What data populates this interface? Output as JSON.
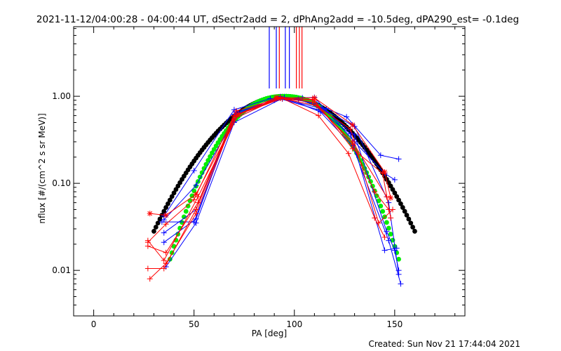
{
  "chart_data": {
    "type": "scatter",
    "title": "2021-11-12/04:00:28 - 04:00:44 UT, dSectr2add = 2, dPhAng2add = -10.5deg, dPA290_est= -0.1deg",
    "xlabel": "PA [deg]",
    "ylabel": "nflux [#/(cm^2 s sr MeV)]",
    "xlim": [
      -10,
      185
    ],
    "ylim": [
      0.003,
      6.3
    ],
    "yscale": "log",
    "x_ticks": [
      0,
      50,
      100,
      150
    ],
    "x_tick_labels": [
      "0",
      "50",
      "100",
      "150"
    ],
    "y_ticks": [
      0.01,
      0.1,
      1.0
    ],
    "y_tick_labels": [
      "0.01",
      "0.10",
      "1.00"
    ],
    "footer": "Created: Sun Nov 21 17:44:04 2021",
    "colors": {
      "blue": "#0000ff",
      "red": "#ff0000",
      "black": "#000000",
      "green": "#00ee00"
    },
    "vertical_markers": [
      {
        "x": 87.5,
        "color": "#0000ff"
      },
      {
        "x": 91.0,
        "color": "#0000ff"
      },
      {
        "x": 92.5,
        "color": "#ff0000"
      },
      {
        "x": 95.5,
        "color": "#0000ff"
      },
      {
        "x": 97.5,
        "color": "#0000ff"
      },
      {
        "x": 101.0,
        "color": "#ff0000"
      },
      {
        "x": 102.5,
        "color": "#ff0000"
      },
      {
        "x": 103.8,
        "color": "#ff0000"
      }
    ],
    "series": [
      {
        "color": "#0000ff",
        "marker": "+",
        "points": [
          [
            35,
            0.042
          ],
          [
            50,
            0.14
          ],
          [
            70,
            0.7
          ],
          [
            88,
            0.94
          ],
          [
            102,
            0.92
          ],
          [
            116,
            0.72
          ],
          [
            126,
            0.58
          ],
          [
            143,
            0.21
          ],
          [
            152,
            0.19
          ]
        ]
      },
      {
        "color": "#0000ff",
        "marker": "+",
        "points": [
          [
            35,
            0.038
          ],
          [
            51,
            0.095
          ],
          [
            72,
            0.63
          ],
          [
            90,
            0.9
          ],
          [
            104,
            0.96
          ],
          [
            110,
            0.97
          ],
          [
            130,
            0.3
          ],
          [
            145,
            0.13
          ],
          [
            150,
            0.11
          ]
        ]
      },
      {
        "color": "#0000ff",
        "marker": "+",
        "points": [
          [
            35,
            0.027
          ],
          [
            51,
            0.05
          ],
          [
            70,
            0.55
          ],
          [
            92,
            0.95
          ],
          [
            112,
            0.7
          ],
          [
            128,
            0.37
          ],
          [
            145,
            0.017
          ],
          [
            151,
            0.018
          ]
        ]
      },
      {
        "color": "#0000ff",
        "marker": "+",
        "points": [
          [
            35,
            0.021
          ],
          [
            51,
            0.039
          ],
          [
            70,
            0.62
          ],
          [
            93,
            0.99
          ],
          [
            111,
            0.82
          ],
          [
            130,
            0.36
          ],
          [
            146,
            0.028
          ],
          [
            150,
            0.017
          ],
          [
            152,
            0.01
          ]
        ]
      },
      {
        "color": "#0000ff",
        "marker": "+",
        "points": [
          [
            36,
            0.011
          ],
          [
            51,
            0.035
          ],
          [
            70,
            0.5
          ],
          [
            95,
            0.97
          ],
          [
            113,
            0.66
          ],
          [
            129,
            0.27
          ],
          [
            147,
            0.022
          ],
          [
            153,
            0.007
          ]
        ]
      },
      {
        "color": "#0000ff",
        "marker": "+",
        "points": [
          [
            34,
            0.036
          ],
          [
            50,
            0.036
          ],
          [
            71,
            0.66
          ],
          [
            94,
            0.93
          ],
          [
            114,
            0.72
          ],
          [
            130,
            0.45
          ],
          [
            147,
            0.06
          ],
          [
            152,
            0.009
          ]
        ]
      },
      {
        "color": "#ff0000",
        "marker": "*",
        "points": [
          [
            28,
            0.045
          ],
          [
            36,
            0.043
          ],
          [
            51,
            0.075
          ],
          [
            72,
            0.62
          ],
          [
            91,
            0.97
          ],
          [
            110,
            0.96
          ],
          [
            129,
            0.47
          ],
          [
            145,
            0.135
          ],
          [
            148,
            0.068
          ]
        ]
      },
      {
        "color": "#ff0000",
        "marker": "+",
        "points": [
          [
            27,
            0.021
          ],
          [
            36,
            0.034
          ],
          [
            50,
            0.065
          ],
          [
            71,
            0.68
          ],
          [
            93,
            0.95
          ],
          [
            109,
            0.92
          ],
          [
            129,
            0.28
          ],
          [
            140,
            0.08
          ],
          [
            147,
            0.05
          ]
        ]
      },
      {
        "color": "#ff0000",
        "marker": "+",
        "points": [
          [
            27,
            0.019
          ],
          [
            36,
            0.016
          ],
          [
            52,
            0.06
          ],
          [
            70,
            0.6
          ],
          [
            93,
            0.95
          ],
          [
            110,
            0.9
          ],
          [
            129,
            0.25
          ],
          [
            144,
            0.13
          ],
          [
            148,
            0.04
          ]
        ]
      },
      {
        "color": "#ff0000",
        "marker": "+",
        "points": [
          [
            27,
            0.0105
          ],
          [
            35,
            0.0105
          ],
          [
            51,
            0.05
          ],
          [
            70,
            0.58
          ],
          [
            92,
            0.96
          ],
          [
            111,
            0.78
          ],
          [
            128,
            0.42
          ],
          [
            142,
            0.035
          ],
          [
            149,
            0.05
          ]
        ]
      },
      {
        "color": "#ff0000",
        "marker": "+",
        "points": [
          [
            28,
            0.008
          ],
          [
            36,
            0.012
          ],
          [
            51,
            0.045
          ],
          [
            70,
            0.55
          ],
          [
            93,
            0.97
          ],
          [
            112,
            0.6
          ],
          [
            127,
            0.22
          ],
          [
            140,
            0.04
          ],
          [
            145,
            0.024
          ]
        ]
      },
      {
        "color": "#ff0000",
        "marker": "+",
        "points": [
          [
            27,
            0.022
          ],
          [
            35,
            0.013
          ],
          [
            52,
            0.07
          ],
          [
            72,
            0.62
          ],
          [
            94,
            0.94
          ],
          [
            109,
            0.86
          ],
          [
            129,
            0.3
          ],
          [
            146,
            0.07
          ]
        ]
      }
    ],
    "fits": [
      {
        "color": "#000000",
        "x_range": [
          30,
          160
        ],
        "center": 95,
        "width": 34.4,
        "exponent": 2
      },
      {
        "color": "#00ee00",
        "x_range": [
          38,
          152
        ],
        "center": 95,
        "width": 30.2,
        "exponent": 2.3
      }
    ]
  }
}
